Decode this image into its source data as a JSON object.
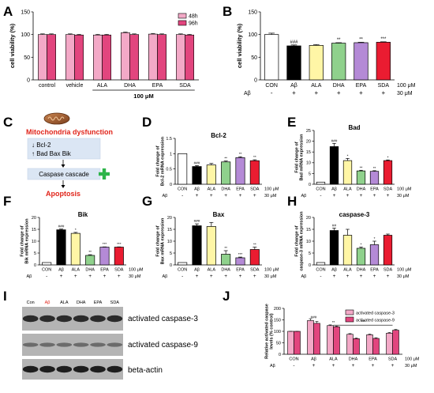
{
  "panel_labels": [
    "A",
    "B",
    "C",
    "D",
    "E",
    "F",
    "G",
    "H",
    "I",
    "J"
  ],
  "colors": {
    "h48": "#f3a9c7",
    "h96": "#e2457e",
    "con": "#ffffff",
    "abeta": "#000000",
    "ala": "#fff6a6",
    "dha": "#8fd18c",
    "epa": "#b48ad6",
    "sda": "#ea1c31",
    "red": "#e1251b",
    "green": "#2fb44a"
  },
  "treat_conc": "100 μM",
  "abeta_conc": "30 μM",
  "abeta_label": "Aβ",
  "groups": [
    "CON",
    "Aβ",
    "ALA",
    "DHA",
    "EPA",
    "SDA"
  ],
  "abeta_signs": [
    "-",
    "+",
    "+",
    "+",
    "+",
    "+"
  ],
  "panel_c": {
    "title": "Mitochondria dysfunction",
    "line1": "↓ Bcl-2",
    "line2": "↑ Bad  Bax  Bik",
    "cascade": "Caspase cascade",
    "outcome": "Apoptosis"
  },
  "panel_i": {
    "lanes": [
      "Con",
      "Aβ",
      "ALA",
      "DHA",
      "EPA",
      "SDA"
    ],
    "bands": [
      "activated caspase-3",
      "activated caspase-9",
      "beta-actin"
    ]
  },
  "chart_data": [
    {
      "id": "A",
      "type": "bar",
      "categories": [
        "control",
        "vehicle",
        "ALA",
        "DHA",
        "EPA",
        "SDA"
      ],
      "series": [
        {
          "name": "48h",
          "values": [
            100,
            100,
            99,
            104,
            101,
            100
          ]
        },
        {
          "name": "96h",
          "values": [
            100,
            99,
            99,
            100,
            100,
            99
          ]
        }
      ],
      "ylabel": "cell viability (%)",
      "ylim": [
        0,
        150
      ],
      "yticks": [
        0,
        50,
        100,
        150
      ],
      "xnote": "100 μM",
      "legend": "top-right"
    },
    {
      "id": "B",
      "type": "bar",
      "categories": [
        "CON",
        "Aβ",
        "ALA",
        "DHA",
        "EPA",
        "SDA"
      ],
      "values": [
        100,
        75,
        76,
        81,
        82,
        83
      ],
      "errors": [
        3,
        2,
        2,
        1,
        1,
        1
      ],
      "sig": [
        "",
        "###",
        "",
        "**",
        "**",
        "***"
      ],
      "ylabel": "cell viability (%)",
      "ylim": [
        0,
        150
      ],
      "yticks": [
        0,
        50,
        100,
        150
      ]
    },
    {
      "id": "D",
      "type": "bar",
      "title": "Bcl-2",
      "categories": [
        "CON",
        "Aβ",
        "ALA",
        "DHA",
        "EPA",
        "SDA"
      ],
      "values": [
        1.0,
        0.58,
        0.63,
        0.73,
        0.87,
        0.77
      ],
      "errors": [
        0,
        0.03,
        0.05,
        0.03,
        0.03,
        0.03
      ],
      "sig": [
        "",
        "###",
        "",
        "**",
        "**",
        "**"
      ],
      "ylabel": "Fold change of Bcl-2 mRNA expression",
      "ylim": [
        0,
        1.5
      ],
      "yticks": [
        0.0,
        0.5,
        1.0,
        1.5
      ]
    },
    {
      "id": "E",
      "type": "bar",
      "title": "Bad",
      "categories": [
        "CON",
        "Aβ",
        "ALA",
        "DHA",
        "EPA",
        "SDA"
      ],
      "values": [
        1,
        17.5,
        11,
        6.2,
        6,
        11
      ],
      "errors": [
        0,
        1.5,
        1,
        0.3,
        0.3,
        0.3
      ],
      "sig": [
        "",
        "###",
        "*",
        "**",
        "**",
        "*"
      ],
      "ylabel": "Fold change of Bad mRNA expression",
      "ylim": [
        0,
        25
      ],
      "yticks": [
        0,
        5,
        10,
        15,
        20,
        25
      ]
    },
    {
      "id": "F",
      "type": "bar",
      "title": "Bik",
      "categories": [
        "CON",
        "Aβ",
        "ALA",
        "DHA",
        "EPA",
        "SDA"
      ],
      "values": [
        1,
        14.8,
        13.3,
        4,
        7.5,
        7.5
      ],
      "errors": [
        0,
        0.3,
        0.4,
        0.3,
        0.1,
        0.1
      ],
      "sig": [
        "",
        "###",
        "*",
        "**",
        "***",
        "***"
      ],
      "ylabel": "Fold change of Bik mRNA expression",
      "ylim": [
        0,
        20
      ],
      "yticks": [
        0,
        5,
        10,
        15,
        20
      ]
    },
    {
      "id": "G",
      "type": "bar",
      "title": "Bax",
      "categories": [
        "CON",
        "Aβ",
        "ALA",
        "DHA",
        "EPA",
        "SDA"
      ],
      "values": [
        1,
        16.5,
        16.2,
        4.5,
        3,
        6.5
      ],
      "errors": [
        0,
        0.8,
        1.7,
        1.5,
        0.3,
        1
      ],
      "sig": [
        "",
        "###",
        "",
        "**",
        "***",
        "**"
      ],
      "ylabel": "Fold change of Bax mRNA expression",
      "ylim": [
        0,
        20
      ],
      "yticks": [
        0,
        5,
        10,
        15,
        20
      ]
    },
    {
      "id": "H",
      "type": "bar",
      "title": "caspase-3",
      "categories": [
        "CON",
        "Aβ",
        "ALA",
        "DHA",
        "EPA",
        "SDA"
      ],
      "values": [
        1,
        14.5,
        12.5,
        7,
        8.5,
        12.5
      ],
      "errors": [
        0,
        1,
        2.5,
        0.5,
        1.5,
        0.5
      ],
      "sig": [
        "",
        "##",
        "",
        "*",
        "*",
        ""
      ],
      "ylabel": "Fold change of caspase-3 mRNA expression",
      "ylim": [
        0,
        20
      ],
      "yticks": [
        0,
        5,
        10,
        15,
        20
      ]
    },
    {
      "id": "J",
      "type": "bar",
      "categories": [
        "CON",
        "Aβ",
        "ALA",
        "DHA",
        "EPA",
        "SDA"
      ],
      "series": [
        {
          "name": "activated caspase-3",
          "values": [
            100,
            147,
            125,
            87,
            85,
            92
          ]
        },
        {
          "name": "activated caspase-9",
          "values": [
            100,
            135,
            120,
            68,
            69,
            105
          ]
        }
      ],
      "errors": [
        [
          0,
          8,
          3,
          3,
          3,
          3
        ],
        [
          0,
          8,
          3,
          3,
          3,
          3
        ]
      ],
      "sig": [
        "",
        "###",
        "**",
        "",
        "",
        ""
      ],
      "bracket_sig": "***",
      "ylabel": "Relative activated caspase levels (% control)",
      "ylim": [
        0,
        200
      ],
      "yticks": [
        0,
        50,
        100,
        150,
        200
      ],
      "legend": "top-right"
    }
  ]
}
